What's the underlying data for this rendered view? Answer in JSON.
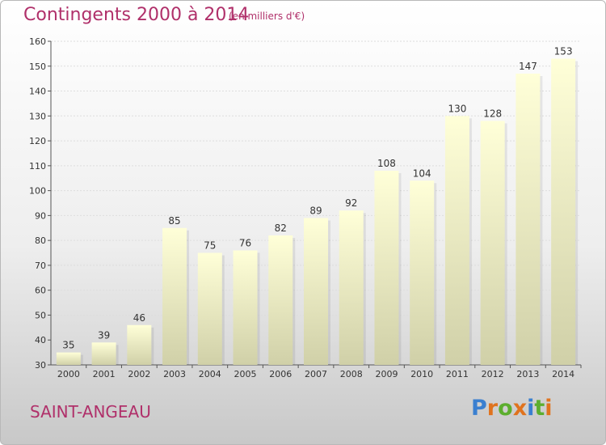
{
  "header": {
    "title": "Contingents 2000 à 2014",
    "subtitle": "(en milliers d'€)"
  },
  "footer": {
    "city": "SAINT-ANGEAU",
    "logo_letters": [
      {
        "ch": "P",
        "color": "#3a7fd0"
      },
      {
        "ch": "r",
        "color": "#e0731e"
      },
      {
        "ch": "o",
        "color": "#5cae2e"
      },
      {
        "ch": "x",
        "color": "#e0731e"
      },
      {
        "ch": "i",
        "color": "#3a7fd0"
      },
      {
        "ch": "t",
        "color": "#5cae2e"
      },
      {
        "ch": "i",
        "color": "#e0731e"
      }
    ]
  },
  "chart_data": {
    "type": "bar",
    "title": "Contingents 2000 à 2014",
    "subtitle": "(en milliers d'€)",
    "categories": [
      "2000",
      "2001",
      "2002",
      "2003",
      "2004",
      "2005",
      "2006",
      "2007",
      "2008",
      "2009",
      "2010",
      "2011",
      "2012",
      "2013",
      "2014"
    ],
    "values": [
      35,
      39,
      46,
      85,
      75,
      76,
      82,
      89,
      92,
      108,
      104,
      130,
      128,
      147,
      153
    ],
    "ylim": [
      30,
      160
    ],
    "yticks": [
      30,
      40,
      50,
      60,
      70,
      80,
      90,
      100,
      110,
      120,
      130,
      140,
      150,
      160
    ],
    "grid": true,
    "data_labels": true,
    "bar_color_top": "#ffffd8",
    "bar_color_bottom": "#d0d0a8"
  }
}
